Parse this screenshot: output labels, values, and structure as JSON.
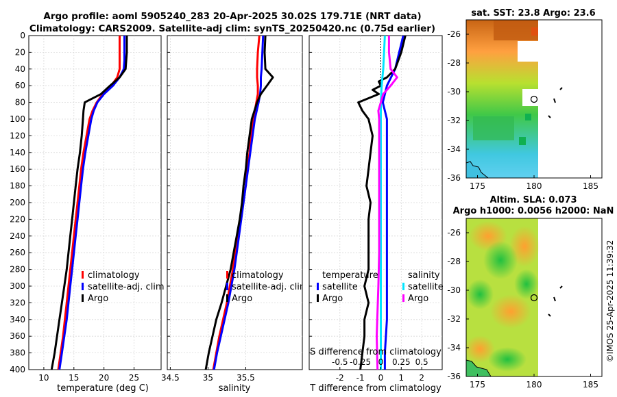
{
  "header": {
    "title_line1": "Argo profile: aoml 5905240_283 20-Apr-2025 30.02S 179.71E (NRT data)",
    "title_line2": "Climatology: CARS2009. Satellite-adj clim: synTS_20250420.nc (0.75d earlier)"
  },
  "colors": {
    "climatology": "#ff0000",
    "satellite": "#0000ff",
    "argo": "#000000",
    "sal_satellite": "#00e5ff",
    "sal_argo": "#ff00ff"
  },
  "chart_data": [
    {
      "type": "line",
      "id": "temperature",
      "xlabel": "temperature (deg C)",
      "xlim": [
        7.5,
        29.5
      ],
      "xticks": [
        10,
        15,
        20,
        25
      ],
      "ylim": [
        0,
        400
      ],
      "yticks": [
        0,
        20,
        40,
        60,
        80,
        100,
        120,
        140,
        160,
        180,
        200,
        220,
        240,
        260,
        280,
        300,
        320,
        340,
        360,
        380,
        400
      ],
      "depth": [
        0,
        10,
        20,
        30,
        40,
        50,
        60,
        70,
        80,
        90,
        100,
        120,
        140,
        160,
        180,
        200,
        220,
        240,
        260,
        280,
        300,
        320,
        340,
        360,
        380,
        400
      ],
      "legend": [
        "climatology",
        "satellite-adj. clim",
        "Argo"
      ],
      "series": [
        {
          "name": "climatology",
          "color": "#ff0000",
          "values": [
            22.6,
            22.6,
            22.6,
            22.6,
            22.6,
            22.2,
            21.2,
            19.8,
            18.8,
            18.1,
            17.6,
            17.1,
            16.6,
            16.2,
            15.9,
            15.6,
            15.3,
            15.0,
            14.7,
            14.4,
            14.1,
            13.8,
            13.5,
            13.2,
            12.8,
            12.4
          ]
        },
        {
          "name": "satellite-adj. clim",
          "color": "#0000ff",
          "values": [
            23.4,
            23.4,
            23.4,
            23.4,
            23.3,
            22.6,
            21.5,
            20.0,
            18.9,
            18.3,
            17.9,
            17.4,
            16.9,
            16.5,
            16.2,
            15.9,
            15.6,
            15.3,
            15.0,
            14.7,
            14.4,
            14.1,
            13.8,
            13.4,
            13.0,
            12.6
          ]
        },
        {
          "name": "Argo",
          "color": "#000000",
          "values": [
            23.8,
            23.8,
            23.8,
            23.7,
            23.6,
            22.6,
            21.0,
            19.5,
            16.8,
            16.6,
            16.5,
            16.3,
            16.0,
            15.6,
            15.3,
            15.0,
            14.7,
            14.4,
            14.1,
            13.8,
            13.4,
            13.0,
            12.6,
            12.2,
            11.8,
            11.3
          ]
        }
      ]
    },
    {
      "type": "line",
      "id": "salinity",
      "xlabel": "salinity",
      "xlim": [
        34.46,
        36.25
      ],
      "xticks": [
        34.5,
        35,
        35.5
      ],
      "xtick_labels": [
        "34.5",
        "35",
        "35.5"
      ],
      "ylim": [
        0,
        400
      ],
      "depth": [
        0,
        20,
        40,
        50,
        60,
        70,
        80,
        100,
        120,
        140,
        160,
        180,
        200,
        220,
        240,
        260,
        280,
        300,
        320,
        340,
        360,
        380,
        400
      ],
      "legend": [
        "climatology",
        "satellite-adj. clim",
        "Argo"
      ],
      "series": [
        {
          "name": "climatology",
          "color": "#ff0000",
          "values": [
            35.68,
            35.66,
            35.65,
            35.65,
            35.66,
            35.66,
            35.64,
            35.6,
            35.57,
            35.55,
            35.52,
            35.5,
            35.46,
            35.43,
            35.4,
            35.36,
            35.33,
            35.29,
            35.25,
            35.2,
            35.15,
            35.11,
            35.07
          ]
        },
        {
          "name": "satellite-adj. clim",
          "color": "#0000ff",
          "values": [
            35.73,
            35.72,
            35.71,
            35.7,
            35.7,
            35.69,
            35.67,
            35.62,
            35.59,
            35.56,
            35.53,
            35.5,
            35.47,
            35.44,
            35.41,
            35.38,
            35.35,
            35.31,
            35.27,
            35.22,
            35.17,
            35.12,
            35.08
          ]
        },
        {
          "name": "Argo",
          "color": "#000000",
          "values": [
            35.76,
            35.75,
            35.76,
            35.86,
            35.78,
            35.7,
            35.65,
            35.58,
            35.55,
            35.52,
            35.5,
            35.47,
            35.45,
            35.42,
            35.38,
            35.34,
            35.3,
            35.24,
            35.18,
            35.11,
            35.06,
            35.01,
            34.97
          ]
        }
      ]
    },
    {
      "type": "line",
      "id": "difference",
      "xlabel": "T difference from climatology",
      "xlim": [
        -3.5,
        3.0
      ],
      "xticks": [
        -2,
        -1,
        0,
        1,
        2
      ],
      "top_xlabel": "S difference from climatology",
      "top_xticks": [
        -0.5,
        -0.25,
        0,
        0.25,
        0.5
      ],
      "top_xtick_labels": [
        "-0.5",
        "-0.25",
        "0",
        "0.25",
        "0.5"
      ],
      "s_scale_factor": 4,
      "ylim": [
        0,
        400
      ],
      "legend_left_title": "temperature",
      "legend_right_title": "salinity",
      "legend_left": [
        "satellite",
        "Argo"
      ],
      "legend_right": [
        "satellite",
        "Argo"
      ],
      "series": [
        {
          "name": "T satellite",
          "color": "#0000ff",
          "depth": [
            0,
            20,
            40,
            50,
            60,
            70,
            80,
            100,
            140,
            180,
            220,
            260,
            300,
            340,
            380,
            400
          ],
          "values": [
            1.1,
            0.9,
            0.7,
            0.5,
            0.3,
            0.2,
            0.1,
            0.3,
            0.3,
            0.3,
            0.3,
            0.3,
            0.3,
            0.3,
            0.2,
            0.2
          ]
        },
        {
          "name": "T Argo",
          "color": "#000000",
          "depth": [
            0,
            20,
            40,
            50,
            55,
            60,
            65,
            70,
            75,
            80,
            90,
            100,
            120,
            140,
            160,
            180,
            200,
            220,
            240,
            260,
            280,
            300,
            320,
            340,
            360,
            380,
            400
          ],
          "values": [
            1.2,
            1.0,
            0.7,
            0.3,
            -0.1,
            0.0,
            -0.4,
            -0.1,
            -0.6,
            -1.1,
            -0.9,
            -0.6,
            -0.4,
            -0.5,
            -0.6,
            -0.7,
            -0.5,
            -0.6,
            -0.6,
            -0.6,
            -0.6,
            -0.8,
            -0.6,
            -0.8,
            -0.8,
            -0.9,
            -1.0
          ]
        },
        {
          "name": "S satellite",
          "color": "#00e5ff",
          "depth": [
            0,
            20,
            40,
            60,
            80,
            100,
            200,
            300,
            400
          ],
          "values": [
            0.05,
            0.04,
            0.03,
            0.01,
            0.0,
            0.0,
            0.0,
            0.0,
            0.0
          ]
        },
        {
          "name": "S Argo",
          "color": "#ff00ff",
          "depth": [
            0,
            20,
            40,
            50,
            60,
            70,
            80,
            90,
            100,
            140,
            200,
            260,
            300,
            360,
            400
          ],
          "values": [
            0.1,
            0.1,
            0.12,
            0.2,
            0.12,
            0.03,
            0.0,
            -0.03,
            -0.02,
            -0.02,
            -0.02,
            -0.02,
            -0.03,
            -0.05,
            -0.04
          ]
        }
      ]
    }
  ],
  "maps": {
    "sst": {
      "title": "sat. SST: 23.8 Argo: 23.6",
      "yticks": [
        -26,
        -28,
        -30,
        -32,
        -34,
        -36
      ],
      "ytick_labels": [
        "-26",
        "-28",
        "-30",
        "-32",
        "-34",
        "-36"
      ],
      "xticks": [
        175,
        180,
        185
      ],
      "xtick_labels": [
        "175",
        "180",
        "185"
      ]
    },
    "sla": {
      "title_line1": "Altim. SLA: 0.073",
      "title_line2": "Argo h1000: 0.0056 h2000: NaN",
      "yticks": [
        -26,
        -28,
        -30,
        -32,
        -34,
        -36
      ],
      "ytick_labels": [
        "-26",
        "-28",
        "-30",
        "-32",
        "-34",
        "-36"
      ],
      "xticks": [
        175,
        180,
        185
      ],
      "xtick_labels": [
        "175",
        "180",
        "185"
      ]
    }
  },
  "footer": {
    "stamp": "©IMOS 25-Apr-2025 11:39:32"
  }
}
